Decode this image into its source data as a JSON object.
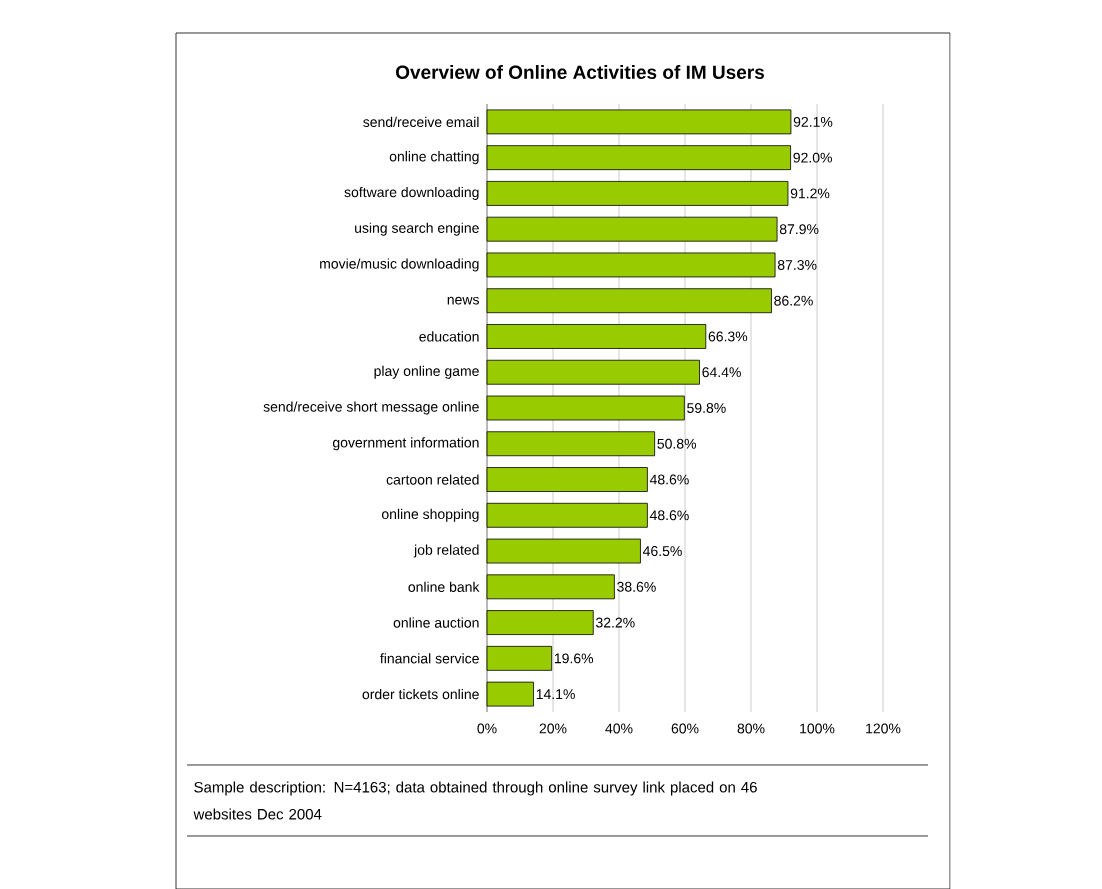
{
  "chart_data": {
    "type": "bar",
    "orientation": "horizontal",
    "title": "Overview of Online Activities of IM Users",
    "categories": [
      "send/receive email",
      "online chatting",
      "software downloading",
      "using search engine",
      "movie/music downloading",
      "news",
      "education",
      "play online game",
      "send/receive short message online",
      "government information",
      "cartoon related",
      "online shopping",
      "job related",
      "online bank",
      "online auction",
      "financial service",
      "order tickets online"
    ],
    "values": [
      92.1,
      92.0,
      91.2,
      87.9,
      87.3,
      86.2,
      66.3,
      64.4,
      59.8,
      50.8,
      48.6,
      48.6,
      46.5,
      38.6,
      32.2,
      19.6,
      14.1
    ],
    "value_labels": [
      "92.1%",
      "92.0%",
      "91.2%",
      "87.9%",
      "87.3%",
      "86.2%",
      "66.3%",
      "64.4%",
      "59.8%",
      "50.8%",
      "48.6%",
      "48.6%",
      "46.5%",
      "38.6%",
      "32.2%",
      "19.6%",
      "14.1%"
    ],
    "color": "#99cc00",
    "xlim": [
      0,
      120
    ],
    "xticks": [
      {
        "value": 0,
        "label": "0%"
      },
      {
        "value": 20,
        "label": "20%"
      },
      {
        "value": 40,
        "label": "40%"
      },
      {
        "value": 60,
        "label": "60%"
      },
      {
        "value": 80,
        "label": "80%"
      },
      {
        "value": 100,
        "label": "100%"
      },
      {
        "value": 120,
        "label": "120%"
      }
    ],
    "grid": "x",
    "annotations": [
      "Sample description: N=4163; data obtained through online survey link placed on 46 websites Dec 2004"
    ]
  }
}
